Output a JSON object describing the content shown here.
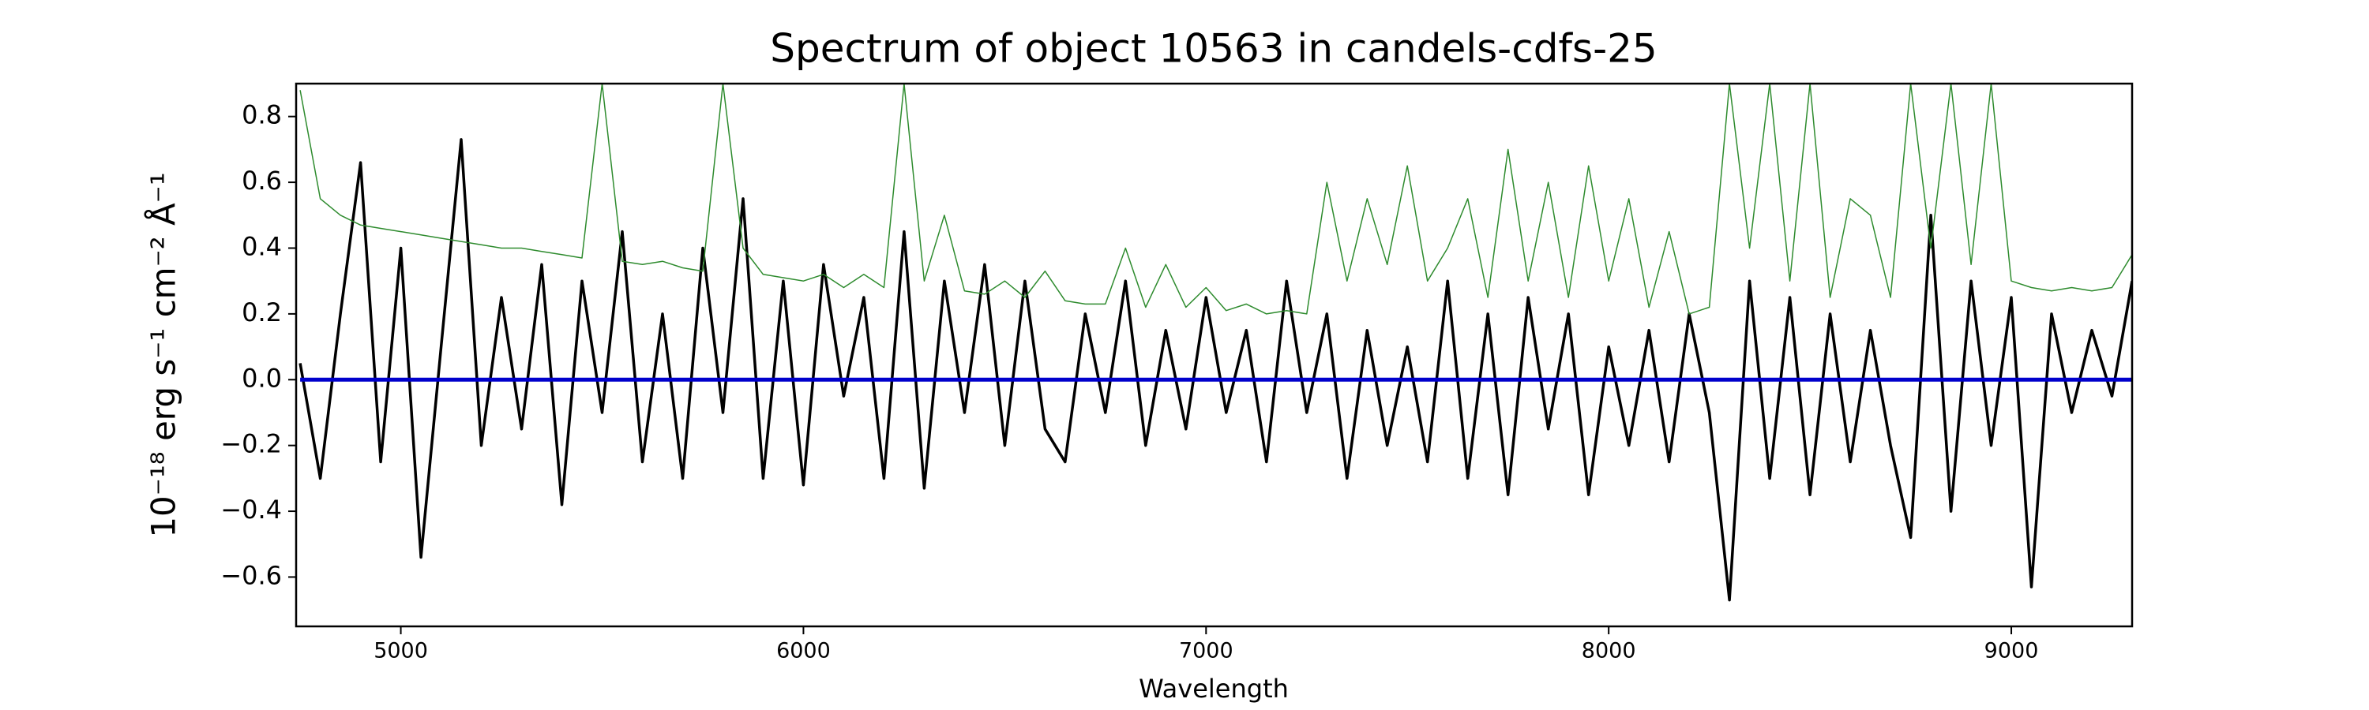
{
  "chart_data": {
    "type": "line",
    "title": "Spectrum of object 10563 in candels-cdfs-25",
    "x_label": "Wavelength",
    "y_label": "10⁻¹⁸ erg s⁻¹ cm⁻² Å⁻¹",
    "x": [
      4750,
      4800,
      4850,
      4900,
      4950,
      5000,
      5050,
      5100,
      5150,
      5200,
      5250,
      5300,
      5350,
      5400,
      5450,
      5500,
      5550,
      5600,
      5650,
      5700,
      5750,
      5800,
      5850,
      5900,
      5950,
      6000,
      6050,
      6100,
      6150,
      6200,
      6250,
      6300,
      6350,
      6400,
      6450,
      6500,
      6550,
      6600,
      6650,
      6700,
      6750,
      6800,
      6850,
      6900,
      6950,
      7000,
      7050,
      7100,
      7150,
      7200,
      7250,
      7300,
      7350,
      7400,
      7450,
      7500,
      7550,
      7600,
      7650,
      7700,
      7750,
      7800,
      7850,
      7900,
      7950,
      8000,
      8050,
      8100,
      8150,
      8200,
      8250,
      8300,
      8350,
      8400,
      8450,
      8500,
      8550,
      8600,
      8650,
      8700,
      8750,
      8800,
      8850,
      8900,
      8950,
      9000,
      9050,
      9100,
      9150,
      9200,
      9250,
      9300
    ],
    "series": [
      {
        "color": "#000000",
        "width": 3.5,
        "values": [
          0.05,
          -0.3,
          0.2,
          0.66,
          -0.25,
          0.4,
          -0.54,
          0.1,
          0.73,
          -0.2,
          0.25,
          -0.15,
          0.35,
          -0.38,
          0.3,
          -0.1,
          0.45,
          -0.25,
          0.2,
          -0.3,
          0.4,
          -0.1,
          0.55,
          -0.3,
          0.3,
          -0.32,
          0.35,
          -0.05,
          0.25,
          -0.3,
          0.45,
          -0.33,
          0.3,
          -0.1,
          0.35,
          -0.2,
          0.3,
          -0.15,
          -0.25,
          0.2,
          -0.1,
          0.3,
          -0.2,
          0.15,
          -0.15,
          0.25,
          -0.1,
          0.15,
          -0.25,
          0.3,
          -0.1,
          0.2,
          -0.3,
          0.15,
          -0.2,
          0.1,
          -0.25,
          0.3,
          -0.3,
          0.2,
          -0.35,
          0.25,
          -0.15,
          0.2,
          -0.35,
          0.1,
          -0.2,
          0.15,
          -0.25,
          0.2,
          -0.1,
          -0.67,
          0.3,
          -0.3,
          0.25,
          -0.35,
          0.2,
          -0.25,
          0.15,
          -0.2,
          -0.48,
          0.5,
          -0.4,
          0.3,
          -0.2,
          0.25,
          -0.63,
          0.2,
          -0.1,
          0.15,
          -0.05,
          0.3
        ]
      },
      {
        "color": "#2e8b2e",
        "width": 1.5,
        "values": [
          0.88,
          0.55,
          0.5,
          0.47,
          0.46,
          0.45,
          0.44,
          0.43,
          0.42,
          0.41,
          0.4,
          0.4,
          0.39,
          0.38,
          0.37,
          0.9,
          0.36,
          0.35,
          0.36,
          0.34,
          0.33,
          0.9,
          0.4,
          0.32,
          0.31,
          0.3,
          0.32,
          0.28,
          0.32,
          0.28,
          0.9,
          0.3,
          0.5,
          0.27,
          0.26,
          0.3,
          0.25,
          0.33,
          0.24,
          0.23,
          0.23,
          0.4,
          0.22,
          0.35,
          0.22,
          0.28,
          0.21,
          0.23,
          0.2,
          0.21,
          0.2,
          0.6,
          0.3,
          0.55,
          0.35,
          0.65,
          0.3,
          0.4,
          0.55,
          0.25,
          0.7,
          0.3,
          0.6,
          0.25,
          0.65,
          0.3,
          0.55,
          0.22,
          0.45,
          0.2,
          0.22,
          0.9,
          0.4,
          0.9,
          0.3,
          0.9,
          0.25,
          0.55,
          0.5,
          0.25,
          0.9,
          0.4,
          0.9,
          0.35,
          0.9,
          0.3,
          0.28,
          0.27,
          0.28,
          0.27,
          0.28,
          0.38
        ]
      },
      {
        "color": "#0000cc",
        "width": 5,
        "values": [
          0,
          0,
          0,
          0,
          0,
          0,
          0,
          0,
          0,
          0,
          0,
          0,
          0,
          0,
          0,
          0,
          0,
          0,
          0,
          0,
          0,
          0,
          0,
          0,
          0,
          0,
          0,
          0,
          0,
          0,
          0,
          0,
          0,
          0,
          0,
          0,
          0,
          0,
          0,
          0,
          0,
          0,
          0,
          0,
          0,
          0,
          0,
          0,
          0,
          0,
          0,
          0,
          0,
          0,
          0,
          0,
          0,
          0,
          0,
          0,
          0,
          0,
          0,
          0,
          0,
          0,
          0,
          0,
          0,
          0,
          0,
          0,
          0,
          0,
          0,
          0,
          0,
          0,
          0,
          0,
          0,
          0,
          0,
          0,
          0,
          0,
          0,
          0,
          0,
          0,
          0,
          0
        ]
      }
    ],
    "xlim": [
      4740,
      9300
    ],
    "ylim": [
      -0.75,
      0.9
    ],
    "xticks": [
      5000,
      6000,
      7000,
      8000,
      9000
    ],
    "yticks": [
      {
        "value": -0.6,
        "label": "−0.6"
      },
      {
        "value": -0.4,
        "label": "−0.4"
      },
      {
        "value": -0.2,
        "label": "−0.2"
      },
      {
        "value": 0,
        "label": "0.0"
      },
      {
        "value": 0.2,
        "label": "0.2"
      },
      {
        "value": 0.4,
        "label": "0.4"
      },
      {
        "value": 0.6,
        "label": "0.6"
      },
      {
        "value": 0.8,
        "label": "0.8"
      }
    ],
    "grid": false
  }
}
